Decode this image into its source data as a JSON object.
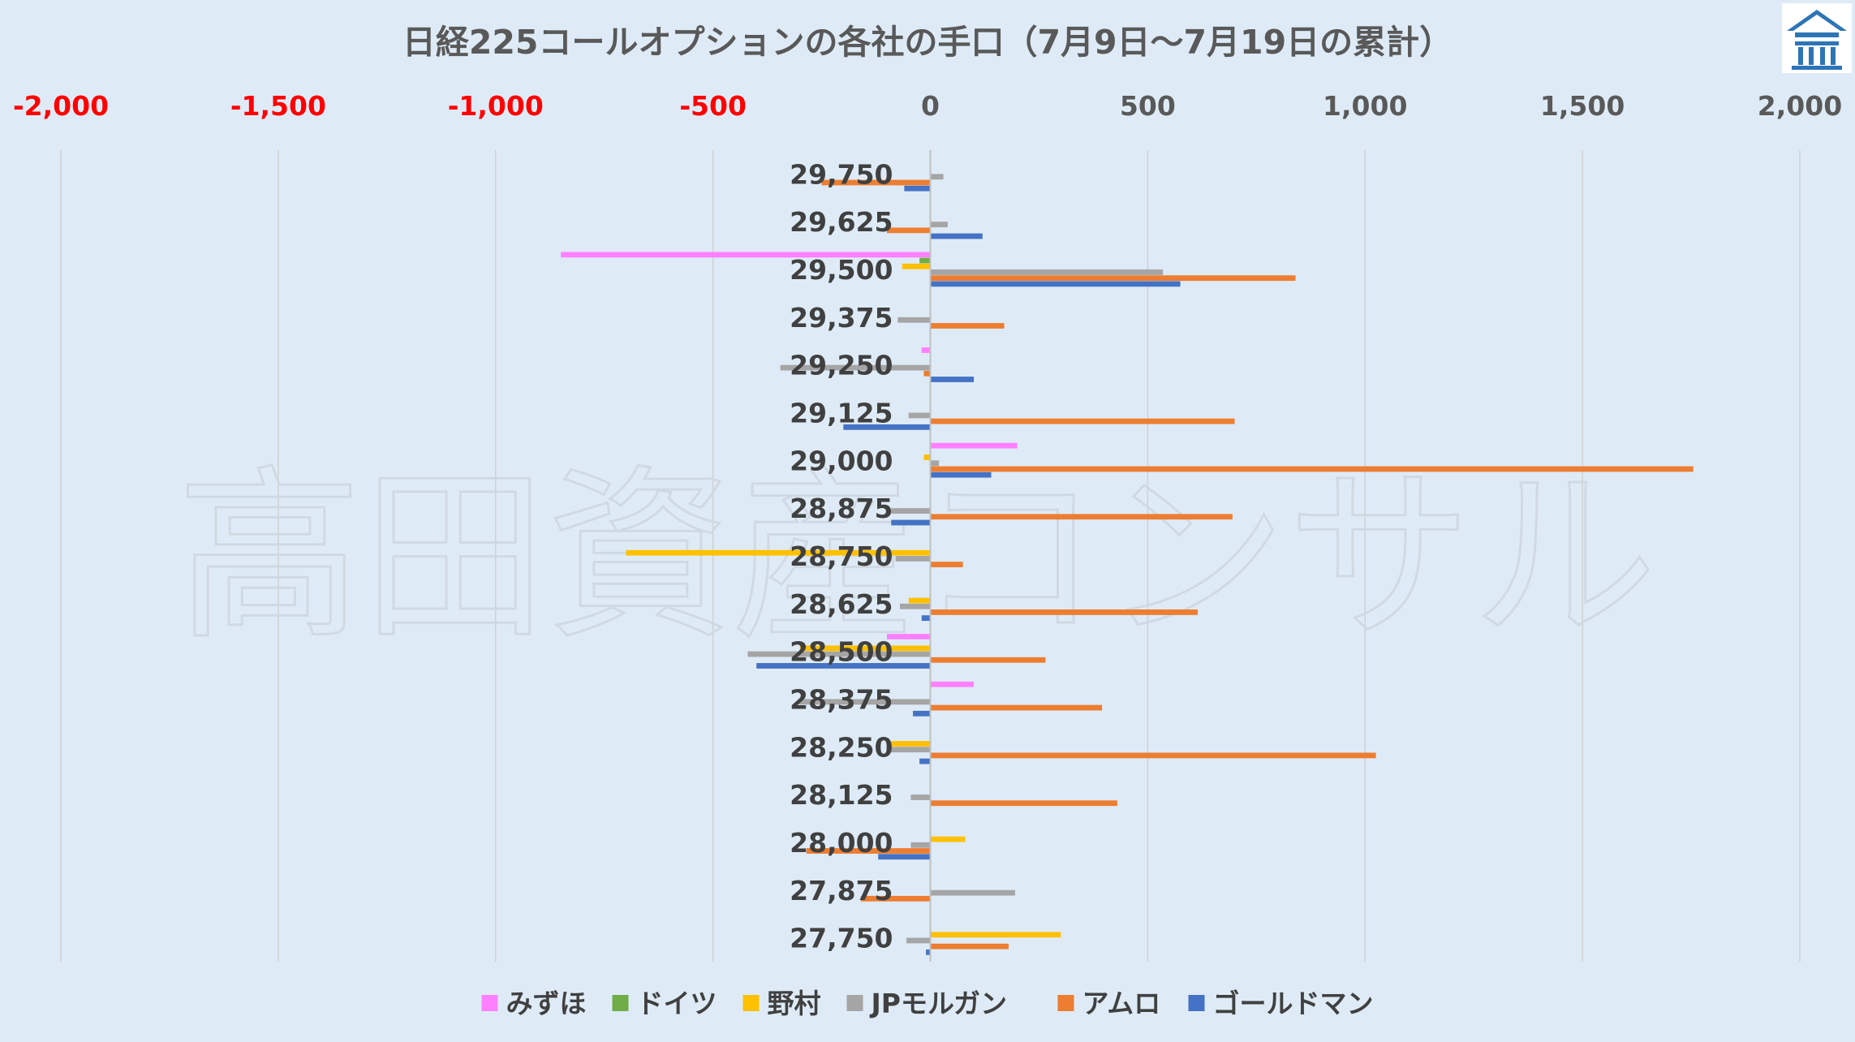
{
  "chart_data": {
    "type": "bar",
    "orientation": "horizontal",
    "title": "日経225コールオプションの各社の手口（7月9日～7月19日の累計）",
    "x_ticks": [
      "-2,000",
      "-1,500",
      "-1,000",
      "-500",
      "0",
      "500",
      "1,000",
      "1,500",
      "2,000"
    ],
    "xlim": [
      -2000,
      2000
    ],
    "grid": "vertical",
    "legend_position": "bottom",
    "categories": [
      "29,750",
      "29,625",
      "29,500",
      "29,375",
      "29,250",
      "29,125",
      "29,000",
      "28,875",
      "28,750",
      "28,625",
      "28,500",
      "28,375",
      "28,250",
      "28,125",
      "28,000",
      "27,875",
      "27,750"
    ],
    "series": [
      {
        "name": "みずほ",
        "color": "#ff80ff",
        "values": [
          0,
          0,
          -850,
          0,
          -20,
          0,
          200,
          0,
          0,
          0,
          -100,
          100,
          0,
          0,
          0,
          0,
          0
        ]
      },
      {
        "name": "ドイツ",
        "color": "#70ad47",
        "values": [
          0,
          0,
          -25,
          0,
          0,
          0,
          0,
          0,
          0,
          0,
          0,
          0,
          0,
          0,
          0,
          0,
          0
        ]
      },
      {
        "name": "野村",
        "color": "#ffc000",
        "values": [
          0,
          0,
          -65,
          0,
          0,
          0,
          -15,
          0,
          -700,
          -50,
          -300,
          0,
          -90,
          0,
          80,
          0,
          300
        ]
      },
      {
        "name": "JPモルガン",
        "color": "#a5a5a5",
        "values": [
          30,
          40,
          535,
          -75,
          -345,
          -50,
          20,
          -90,
          -80,
          -70,
          -420,
          -305,
          -100,
          -45,
          -45,
          195,
          -55
        ]
      },
      {
        "name": "アムロ",
        "color": "#ed7d31",
        "values": [
          -250,
          -100,
          840,
          170,
          -15,
          700,
          1755,
          695,
          75,
          615,
          265,
          395,
          1025,
          430,
          -285,
          -160,
          180
        ]
      },
      {
        "name": "ゴールドマン",
        "color": "#4472c4",
        "values": [
          -60,
          120,
          575,
          0,
          100,
          -200,
          140,
          -90,
          0,
          -20,
          -400,
          -40,
          -25,
          0,
          -120,
          0,
          -10
        ]
      }
    ]
  },
  "watermark": "高田資産コンサル",
  "logo": {
    "icon": "building-logo-icon",
    "color": "#2e75b6"
  }
}
